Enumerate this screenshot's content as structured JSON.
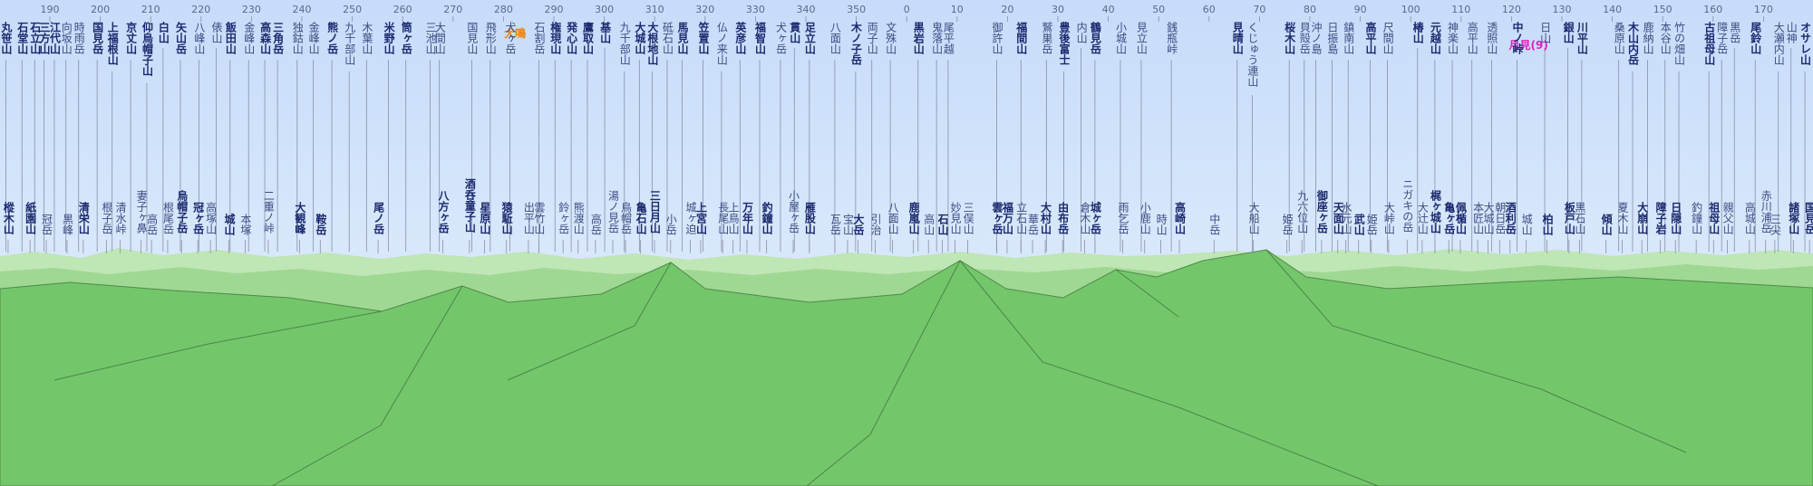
{
  "bearing_ticks": [
    190,
    200,
    210,
    220,
    230,
    240,
    250,
    260,
    270,
    280,
    290,
    300,
    310,
    320,
    330,
    340,
    350,
    0,
    10,
    20,
    30,
    40,
    50,
    60,
    70,
    80,
    90,
    100,
    110,
    120,
    130,
    140,
    150,
    160,
    170
  ],
  "highlights": [
    {
      "name": "犬鳴",
      "color": "#f08000"
    },
    {
      "name": "月見(9)",
      "color": "#e020c0"
    }
  ],
  "upper_peaks": [
    {
      "name": "丸笹山",
      "bold": true
    },
    {
      "name": "石堂山",
      "bold": true
    },
    {
      "name": "石立山",
      "bold": true
    },
    {
      "name": "三方山",
      "bold": true
    },
    {
      "name": "江代山",
      "bold": true
    },
    {
      "name": "向坂山"
    },
    {
      "name": "時雨岳"
    },
    {
      "name": "国見岳",
      "bold": true
    },
    {
      "name": "上福根山",
      "bold": true
    },
    {
      "name": "京丈山",
      "bold": true
    },
    {
      "name": "仰烏帽子山",
      "bold": true
    },
    {
      "name": "白山",
      "bold": true
    },
    {
      "name": "矢山岳",
      "bold": true
    },
    {
      "name": "八峰山"
    },
    {
      "name": "俵山"
    },
    {
      "name": "飯田山",
      "bold": true
    },
    {
      "name": "金峰山"
    },
    {
      "name": "高森山",
      "bold": true
    },
    {
      "name": "三角岳",
      "bold": true
    },
    {
      "name": "独鈷山"
    },
    {
      "name": "金峰山"
    },
    {
      "name": "熊ノ岳",
      "bold": true
    },
    {
      "name": "九千部山"
    },
    {
      "name": "木葉山"
    },
    {
      "name": "米野山",
      "bold": true
    },
    {
      "name": "筒ヶ岳",
      "bold": true
    },
    {
      "name": "三池山"
    },
    {
      "name": "大間山"
    },
    {
      "name": "国見山"
    },
    {
      "name": "飛形山"
    },
    {
      "name": "犬ヶ岳"
    },
    {
      "name": "石割岳"
    },
    {
      "name": "権現山",
      "bold": true
    },
    {
      "name": "発心山",
      "bold": true
    },
    {
      "name": "鷹取山",
      "bold": true
    },
    {
      "name": "基山",
      "bold": true
    },
    {
      "name": "九千部山"
    },
    {
      "name": "大城山",
      "bold": true
    },
    {
      "name": "大根地山",
      "bold": true
    },
    {
      "name": "砥石山"
    },
    {
      "name": "馬見山",
      "bold": true
    },
    {
      "name": "笠置山",
      "bold": true
    },
    {
      "name": "仏ノ来山"
    },
    {
      "name": "英彦山",
      "bold": true
    },
    {
      "name": "福智山",
      "bold": true
    },
    {
      "name": "犬ヶ岳"
    },
    {
      "name": "貫山",
      "bold": true
    },
    {
      "name": "足立山",
      "bold": true
    },
    {
      "name": "八面山"
    },
    {
      "name": "木ノ子岳",
      "bold": true
    },
    {
      "name": "両子山"
    },
    {
      "name": "文殊山"
    },
    {
      "name": "黒岩山",
      "bold": true
    },
    {
      "name": "鬼落山"
    },
    {
      "name": "尾平越"
    },
    {
      "name": "御許山"
    },
    {
      "name": "福間山",
      "bold": true
    },
    {
      "name": "鷲巣岳"
    },
    {
      "name": "豊後富士",
      "bold": true
    },
    {
      "name": "内山"
    },
    {
      "name": "鶴見岳",
      "bold": true
    },
    {
      "name": "小城山"
    },
    {
      "name": "見立山"
    },
    {
      "name": "銭瓶峠"
    },
    {
      "name": "見晴山",
      "bold": true
    },
    {
      "name": "くじゅう連山"
    },
    {
      "name": "桜木山",
      "bold": true
    },
    {
      "name": "貝殻岳"
    },
    {
      "name": "沖ノ島"
    },
    {
      "name": "日振島"
    },
    {
      "name": "鎮南山"
    },
    {
      "name": "高平山",
      "bold": true
    },
    {
      "name": "尺間山"
    },
    {
      "name": "椿山",
      "bold": true
    },
    {
      "name": "元越山",
      "bold": true
    },
    {
      "name": "神楽山"
    },
    {
      "name": "高平山"
    },
    {
      "name": "透照山"
    },
    {
      "name": "中ノ峠",
      "bold": true
    },
    {
      "name": "日山"
    },
    {
      "name": "銀山",
      "bold": true
    },
    {
      "name": "川平山",
      "bold": true
    },
    {
      "name": "桑原山"
    },
    {
      "name": "木山内岳",
      "bold": true
    },
    {
      "name": "鹿納山"
    },
    {
      "name": "本谷山"
    },
    {
      "name": "竹の畑山"
    },
    {
      "name": "古祖母山",
      "bold": true
    },
    {
      "name": "障子岳"
    },
    {
      "name": "黒岳"
    },
    {
      "name": "尾鈴山",
      "bold": true
    },
    {
      "name": "大瀬内山"
    },
    {
      "name": "山神"
    },
    {
      "name": "オサレ山",
      "bold": true
    }
  ],
  "lower_peaks": [
    {
      "name": "樅木山",
      "bold": true
    },
    {
      "name": "紙園山",
      "bold": true
    },
    {
      "name": "冠岳"
    },
    {
      "name": "黒峰"
    },
    {
      "name": "清栄山",
      "bold": true
    },
    {
      "name": "根子岳"
    },
    {
      "name": "清水峠"
    },
    {
      "name": "妻子ヶ鼻"
    },
    {
      "name": "高岳"
    },
    {
      "name": "根尾岳"
    },
    {
      "name": "烏帽子岳",
      "bold": true
    },
    {
      "name": "冠ヶ岳",
      "bold": true
    },
    {
      "name": "高塚山"
    },
    {
      "name": "城山",
      "bold": true
    },
    {
      "name": "本塚"
    },
    {
      "name": "二重ノ峠"
    },
    {
      "name": "大観峰",
      "bold": true
    },
    {
      "name": "鞍岳",
      "bold": true
    },
    {
      "name": "尾ノ岳",
      "bold": true
    },
    {
      "name": "八方ヶ岳",
      "bold": true
    },
    {
      "name": "酒呑童子山",
      "bold": true
    },
    {
      "name": "星原山",
      "bold": true
    },
    {
      "name": "猿駈山",
      "bold": true
    },
    {
      "name": "出平山"
    },
    {
      "name": "雲竹山"
    },
    {
      "name": "鈴ヶ岳"
    },
    {
      "name": "熊渡山"
    },
    {
      "name": "高岳"
    },
    {
      "name": "湯ノ見岳"
    },
    {
      "name": "鳥帽岳"
    },
    {
      "name": "亀石山",
      "bold": true
    },
    {
      "name": "三日月山",
      "bold": true
    },
    {
      "name": "小岳"
    },
    {
      "name": "城ヶ迫"
    },
    {
      "name": "上宮山",
      "bold": true
    },
    {
      "name": "長尾山"
    },
    {
      "name": "上鳥山"
    },
    {
      "name": "万年山",
      "bold": true
    },
    {
      "name": "釣鐘山",
      "bold": true
    },
    {
      "name": "小屋ヶ岳"
    },
    {
      "name": "雁股山",
      "bold": true
    },
    {
      "name": "瓦岳"
    },
    {
      "name": "宝山"
    },
    {
      "name": "大岳",
      "bold": true
    },
    {
      "name": "引治"
    },
    {
      "name": "八面山"
    },
    {
      "name": "鹿嵐山",
      "bold": true
    },
    {
      "name": "高山"
    },
    {
      "name": "石山",
      "bold": true
    },
    {
      "name": "妙見山"
    },
    {
      "name": "三俣山"
    },
    {
      "name": "雲ヶ岳",
      "bold": true
    },
    {
      "name": "福万山",
      "bold": true
    },
    {
      "name": "立石山"
    },
    {
      "name": "華岳"
    },
    {
      "name": "大村山",
      "bold": true
    },
    {
      "name": "由布岳",
      "bold": true
    },
    {
      "name": "倉木山"
    },
    {
      "name": "城ヶ岳",
      "bold": true
    },
    {
      "name": "雨乞岳"
    },
    {
      "name": "小鹿山"
    },
    {
      "name": "時山"
    },
    {
      "name": "高崎山",
      "bold": true
    },
    {
      "name": "中岳"
    },
    {
      "name": "大船山"
    },
    {
      "name": "姫岳"
    },
    {
      "name": "九六位山"
    },
    {
      "name": "御座ヶ岳",
      "bold": true
    },
    {
      "name": "天面山",
      "bold": true
    },
    {
      "name": "水元山"
    },
    {
      "name": "武山",
      "bold": true
    },
    {
      "name": "姫岳"
    },
    {
      "name": "大峠山"
    },
    {
      "name": "ニガキの岳"
    },
    {
      "name": "大辻山"
    },
    {
      "name": "梶ヶ城山",
      "bold": true
    },
    {
      "name": "亀ヶ岳",
      "bold": true
    },
    {
      "name": "佩楯山",
      "bold": true
    },
    {
      "name": "本匠山"
    },
    {
      "name": "大城山"
    },
    {
      "name": "朝日岳"
    },
    {
      "name": "酒利岳",
      "bold": true
    },
    {
      "name": "城山"
    },
    {
      "name": "柏山",
      "bold": true
    },
    {
      "name": "板戸山",
      "bold": true
    },
    {
      "name": "黒石山"
    },
    {
      "name": "傾山",
      "bold": true
    },
    {
      "name": "夏木山"
    },
    {
      "name": "大崩山",
      "bold": true
    },
    {
      "name": "障子岩",
      "bold": true
    },
    {
      "name": "日隠山",
      "bold": true
    },
    {
      "name": "釣鐘山"
    },
    {
      "name": "祖母山",
      "bold": true
    },
    {
      "name": "親父山"
    },
    {
      "name": "高城山"
    },
    {
      "name": "赤川浦岳"
    },
    {
      "name": "三尖"
    },
    {
      "name": "諸塚山",
      "bold": true
    },
    {
      "name": "国見岳",
      "bold": true
    }
  ]
}
